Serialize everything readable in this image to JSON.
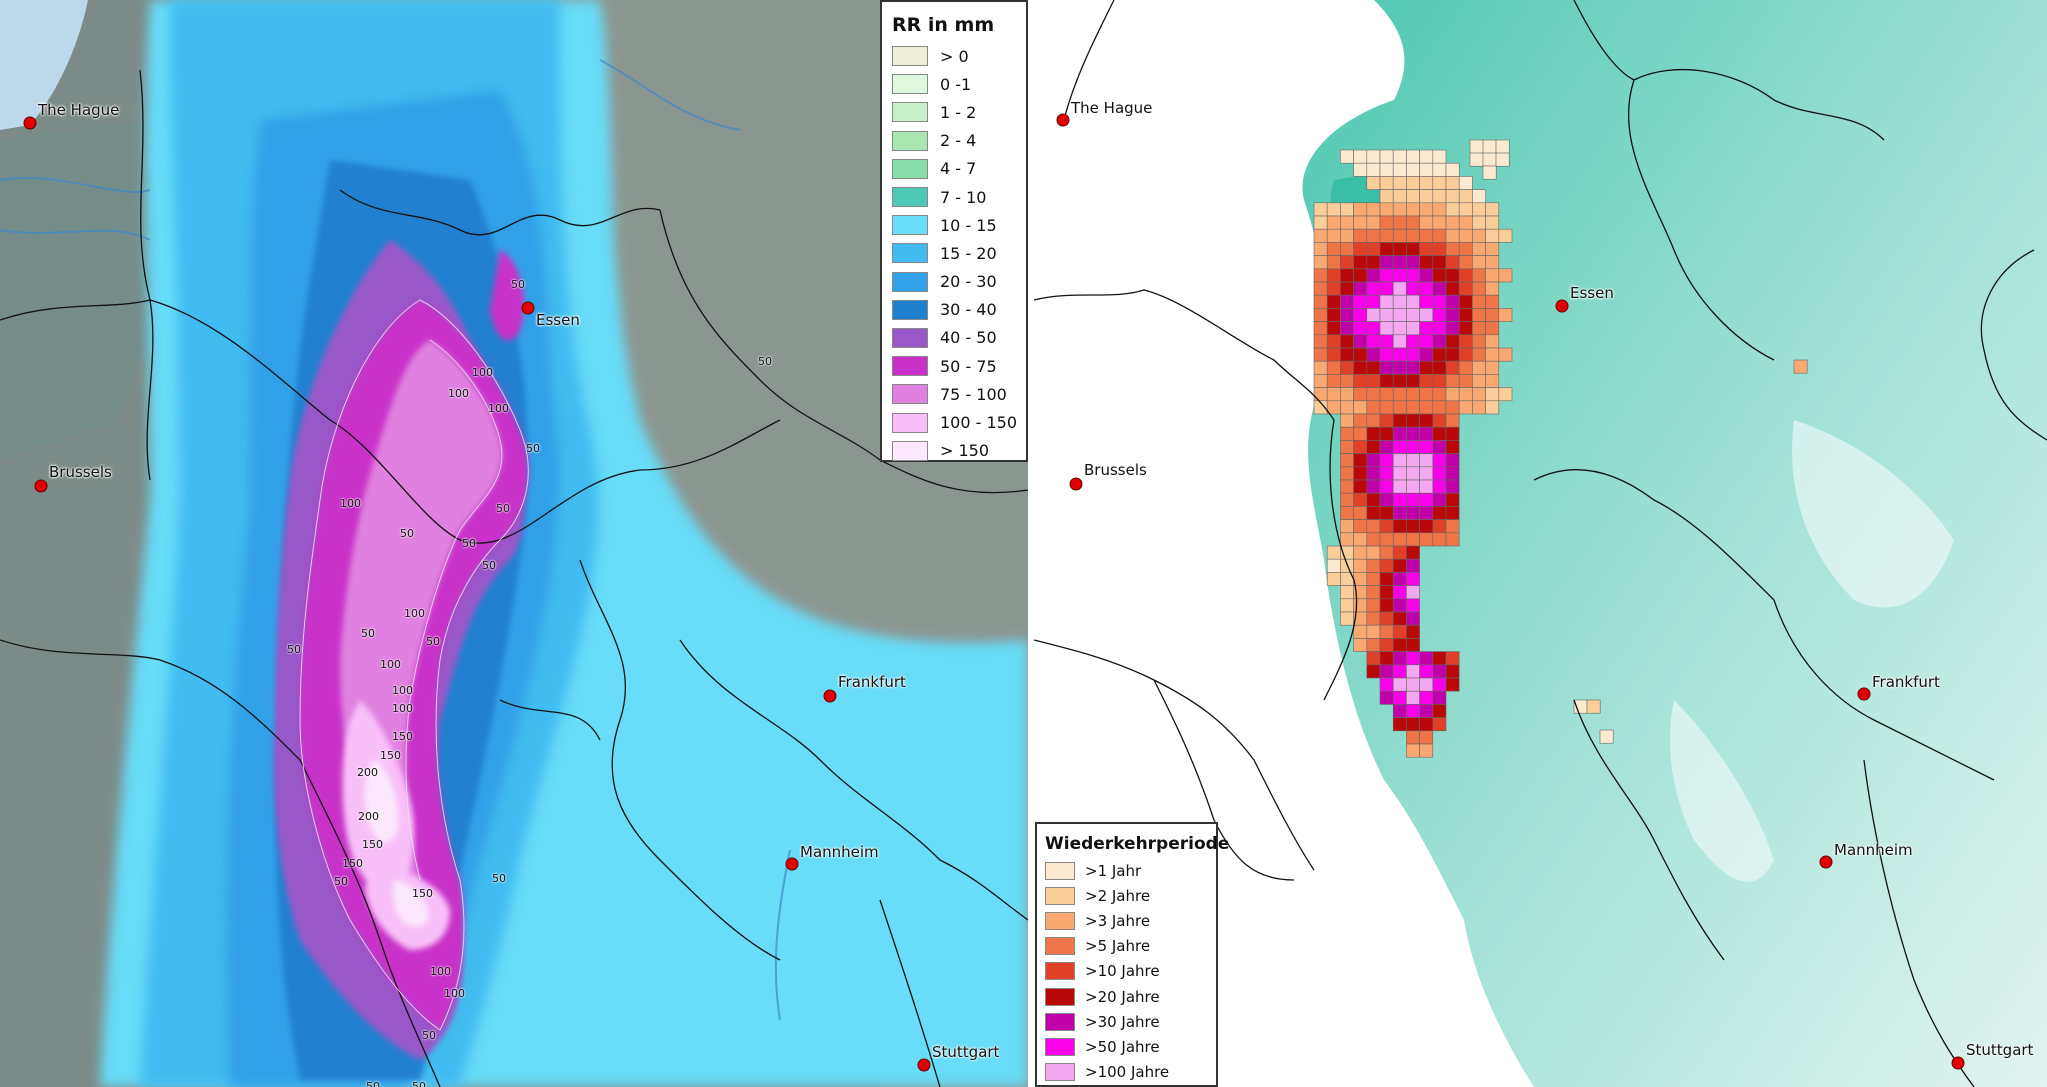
{
  "left_map": {
    "legend": {
      "title": "RR in mm",
      "items": [
        {
          "label": "> 0",
          "color": "#f0f0d8"
        },
        {
          "label": "0 -1",
          "color": "#e0f8e0"
        },
        {
          "label": "1 - 2",
          "color": "#c8f0c8"
        },
        {
          "label": "2 - 4",
          "color": "#a8e8b0"
        },
        {
          "label": "4 - 7",
          "color": "#88dca8"
        },
        {
          "label": "7 - 10",
          "color": "#50c8b8"
        },
        {
          "label": "10 - 15",
          "color": "#68dcf8"
        },
        {
          "label": "15 - 20",
          "color": "#40bcf0"
        },
        {
          "label": "20 - 30",
          "color": "#30a0e8"
        },
        {
          "label": "30 - 40",
          "color": "#2080d0"
        },
        {
          "label": "40 - 50",
          "color": "#9858c8"
        },
        {
          "label": "50 - 75",
          "color": "#c830c8"
        },
        {
          "label": "75 - 100",
          "color": "#e080e0"
        },
        {
          "label": "100 - 150",
          "color": "#f8c0f8"
        },
        {
          "label": "> 150",
          "color": "#fce8fc"
        }
      ]
    },
    "cities": [
      {
        "name": "The Hague"
      },
      {
        "name": "Essen"
      },
      {
        "name": "Brussels"
      },
      {
        "name": "Frankfurt"
      },
      {
        "name": "Mannheim"
      },
      {
        "name": "Stuttgart"
      }
    ],
    "contour_labels": [
      "50",
      "100",
      "100",
      "100",
      "50",
      "100",
      "50",
      "50",
      "50",
      "50",
      "100",
      "50",
      "50",
      "50",
      "100",
      "100",
      "100",
      "150",
      "150",
      "200",
      "200",
      "150",
      "150",
      "50",
      "150",
      "50",
      "100",
      "100",
      "50",
      "50",
      "50",
      "50"
    ]
  },
  "right_map": {
    "legend": {
      "title": "Wiederkehrperiode",
      "items": [
        {
          "label": ">1 Jahr",
          "color": "#fde9cf"
        },
        {
          "label": ">2 Jahre",
          "color": "#fbcd98"
        },
        {
          "label": ">3 Jahre",
          "color": "#f8a870"
        },
        {
          "label": ">5 Jahre",
          "color": "#ef7448"
        },
        {
          "label": ">10 Jahre",
          "color": "#e04028"
        },
        {
          "label": ">20 Jahre",
          "color": "#b80808"
        },
        {
          "label": ">30 Jahre",
          "color": "#c000a8"
        },
        {
          "label": ">50 Jahre",
          "color": "#f800e8"
        },
        {
          "label": ">100 Jahre",
          "color": "#f4a8f0"
        }
      ]
    },
    "cities": [
      {
        "name": "The Hague"
      },
      {
        "name": "Essen"
      },
      {
        "name": "Brussels"
      },
      {
        "name": "Frankfurt"
      },
      {
        "name": "Mannheim"
      },
      {
        "name": "Stuttgart"
      }
    ]
  }
}
